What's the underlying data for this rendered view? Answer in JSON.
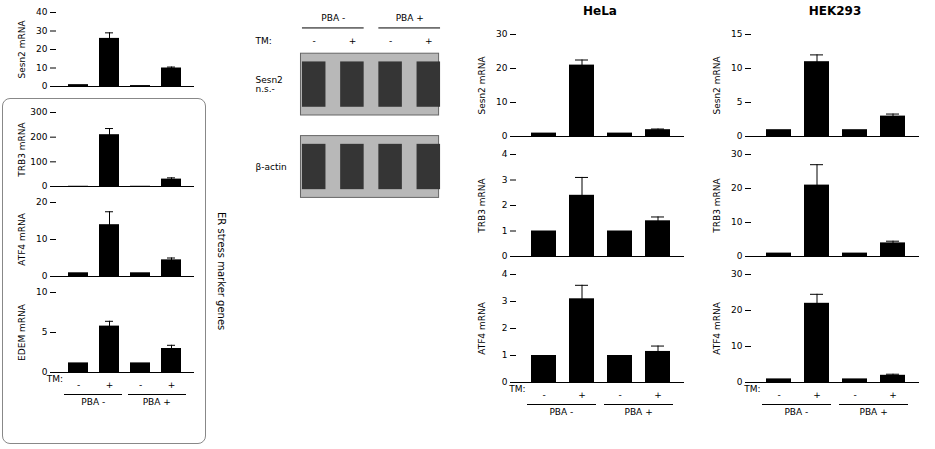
{
  "chart_data": [
    {
      "type": "bar",
      "categories": [
        null,
        null,
        null,
        null
      ],
      "values": [
        1,
        26,
        0.5,
        10
      ],
      "errors": [
        0,
        3,
        0,
        0.5
      ],
      "ylim": [
        0,
        40
      ],
      "yticks": [
        0,
        10,
        20,
        30,
        40
      ],
      "ylabel": "Sesn2 mRNA",
      "color": "#000000"
    },
    {
      "type": "bar",
      "categories": [
        null,
        null,
        null,
        null
      ],
      "values": [
        1,
        210,
        1,
        30
      ],
      "errors": [
        0,
        25,
        0,
        5
      ],
      "ylim": [
        0,
        300
      ],
      "yticks": [
        0,
        100,
        200,
        300
      ],
      "ylabel": "TRB3 mRNA",
      "color": "#000000",
      "annotations": [
        "ER stress marker genes"
      ]
    },
    {
      "type": "bar",
      "categories": [
        null,
        null,
        null,
        null
      ],
      "values": [
        1,
        14,
        1,
        4.5
      ],
      "errors": [
        0,
        3.5,
        0,
        0.5
      ],
      "ylim": [
        0,
        20
      ],
      "yticks": [
        0,
        10,
        20
      ],
      "ylabel": "ATF4 mRNA",
      "color": "#000000"
    },
    {
      "type": "bar",
      "categories": [
        "-",
        "+",
        "-",
        "+"
      ],
      "values": [
        1.2,
        5.8,
        1.2,
        3.0
      ],
      "errors": [
        0,
        0.6,
        0,
        0.4
      ],
      "ylim": [
        0,
        10
      ],
      "yticks": [
        0,
        5,
        10
      ],
      "ylabel": "EDEM mRNA",
      "color": "#000000",
      "annotations": [
        "TM:",
        "PBA -",
        "PBA +"
      ]
    },
    {
      "type": "blot",
      "categories": [
        "-",
        "+",
        "-",
        "+"
      ],
      "annotations": [
        "PBA -",
        "PBA +",
        "TM:",
        "Sesn2\nn.s.-",
        "β-actin"
      ]
    },
    {
      "type": "bar",
      "title": "HeLa",
      "categories": [
        null,
        null,
        null,
        null
      ],
      "values": [
        1,
        21,
        1,
        2
      ],
      "errors": [
        0,
        1.5,
        0,
        0.2
      ],
      "ylim": [
        0,
        30
      ],
      "yticks": [
        0,
        10,
        20,
        30
      ],
      "ylabel": "Sesn2 mRNA",
      "color": "#000000"
    },
    {
      "type": "bar",
      "categories": [
        null,
        null,
        null,
        null
      ],
      "values": [
        1,
        2.4,
        1,
        1.4
      ],
      "errors": [
        0,
        0.7,
        0,
        0.15
      ],
      "ylim": [
        0,
        4
      ],
      "yticks": [
        0,
        1,
        2,
        3,
        4
      ],
      "ylabel": "TRB3 mRNA",
      "color": "#000000"
    },
    {
      "type": "bar",
      "categories": [
        "-",
        "+",
        "-",
        "+"
      ],
      "values": [
        1,
        3.1,
        1,
        1.15
      ],
      "errors": [
        0,
        0.5,
        0,
        0.2
      ],
      "ylim": [
        0,
        4
      ],
      "yticks": [
        0,
        1,
        2,
        3,
        4
      ],
      "ylabel": "ATF4 mRNA",
      "color": "#000000",
      "annotations": [
        "TM:",
        "PBA -",
        "PBA +"
      ]
    },
    {
      "type": "bar",
      "title": "HEK293",
      "categories": [
        null,
        null,
        null,
        null
      ],
      "values": [
        1,
        11,
        1,
        3
      ],
      "errors": [
        0,
        1,
        0,
        0.3
      ],
      "ylim": [
        0,
        15
      ],
      "yticks": [
        0,
        5,
        10,
        15
      ],
      "ylabel": "Sesn2 mRNA",
      "color": "#000000"
    },
    {
      "type": "bar",
      "categories": [
        null,
        null,
        null,
        null
      ],
      "values": [
        1,
        21,
        1,
        4
      ],
      "errors": [
        0,
        6,
        0,
        0.5
      ],
      "ylim": [
        0,
        30
      ],
      "yticks": [
        0,
        10,
        20,
        30
      ],
      "ylabel": "TRB3 mRNA",
      "color": "#000000"
    },
    {
      "type": "bar",
      "categories": [
        "-",
        "+",
        "-",
        "+"
      ],
      "values": [
        1,
        22,
        1,
        2
      ],
      "errors": [
        0,
        2.5,
        0,
        0.3
      ],
      "ylim": [
        0,
        30
      ],
      "yticks": [
        0,
        10,
        20,
        30
      ],
      "ylabel": "ATF4 mRNA",
      "color": "#000000",
      "annotations": [
        "TM:",
        "PBA -",
        "PBA +"
      ]
    }
  ]
}
